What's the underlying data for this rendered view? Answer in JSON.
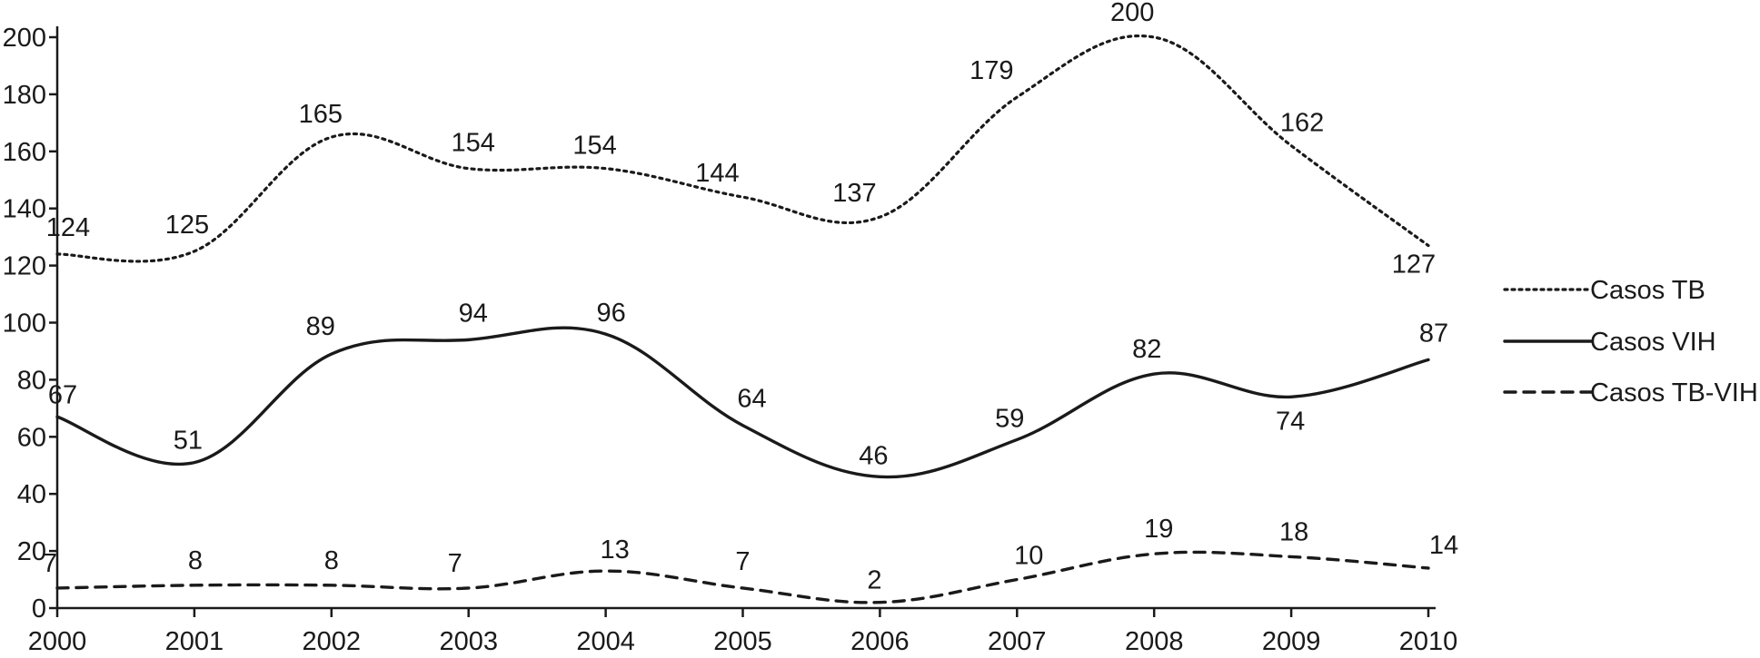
{
  "chart_data": {
    "type": "line",
    "categories": [
      "2000",
      "2001",
      "2002",
      "2003",
      "2004",
      "2005",
      "2006",
      "2007",
      "2008",
      "2009",
      "2010"
    ],
    "ylim": [
      0,
      200
    ],
    "yticks": [
      0,
      20,
      40,
      60,
      80,
      100,
      120,
      140,
      160,
      180,
      200
    ],
    "grid": false,
    "legend_position": "right",
    "series": [
      {
        "name": "Casos TB",
        "style": "dotted",
        "color": "#1a1a1a",
        "values": [
          124,
          125,
          165,
          154,
          154,
          144,
          137,
          179,
          200,
          162,
          127
        ]
      },
      {
        "name": "Casos VIH",
        "style": "solid",
        "color": "#1a1a1a",
        "values": [
          67,
          51,
          89,
          94,
          96,
          64,
          46,
          59,
          82,
          74,
          87
        ]
      },
      {
        "name": "Casos TB-VIH",
        "style": "dashed",
        "color": "#1a1a1a",
        "values": [
          7,
          8,
          8,
          7,
          13,
          7,
          2,
          10,
          19,
          18,
          14
        ]
      }
    ]
  }
}
